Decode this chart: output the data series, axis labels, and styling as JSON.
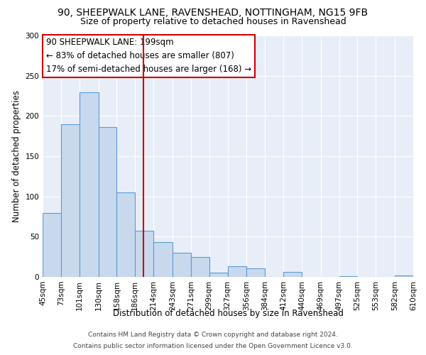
{
  "title_line1": "90, SHEEPWALK LANE, RAVENSHEAD, NOTTINGHAM, NG15 9FB",
  "title_line2": "Size of property relative to detached houses in Ravenshead",
  "xlabel": "Distribution of detached houses by size in Ravenshead",
  "ylabel": "Number of detached properties",
  "bin_labels": [
    "45sqm",
    "73sqm",
    "101sqm",
    "130sqm",
    "158sqm",
    "186sqm",
    "214sqm",
    "243sqm",
    "271sqm",
    "299sqm",
    "327sqm",
    "356sqm",
    "384sqm",
    "412sqm",
    "440sqm",
    "469sqm",
    "497sqm",
    "525sqm",
    "553sqm",
    "582sqm",
    "610sqm"
  ],
  "bar_values": [
    79,
    190,
    229,
    186,
    105,
    57,
    43,
    30,
    25,
    5,
    13,
    11,
    0,
    6,
    0,
    0,
    1,
    0,
    0,
    2
  ],
  "bar_edges": [
    45,
    73,
    101,
    130,
    158,
    186,
    214,
    243,
    271,
    299,
    327,
    356,
    384,
    412,
    440,
    469,
    497,
    525,
    553,
    582,
    610
  ],
  "bar_color": "#c9d9ed",
  "bar_edge_color": "#5b9bd5",
  "property_size": 199,
  "vline_color": "#cc0000",
  "annotation_text_line1": "90 SHEEPWALK LANE: 199sqm",
  "annotation_text_line2": "← 83% of detached houses are smaller (807)",
  "annotation_text_line3": "17% of semi-detached houses are larger (168) →",
  "annotation_box_edge_color": "#cc0000",
  "ylim": [
    0,
    300
  ],
  "yticks": [
    0,
    50,
    100,
    150,
    200,
    250,
    300
  ],
  "footer_line1": "Contains HM Land Registry data © Crown copyright and database right 2024.",
  "footer_line2": "Contains public sector information licensed under the Open Government Licence v3.0.",
  "background_color": "#e8eef7",
  "title_fontsize": 10,
  "subtitle_fontsize": 9,
  "axis_label_fontsize": 8.5,
  "tick_fontsize": 7.5,
  "annotation_fontsize": 8.5,
  "footer_fontsize": 6.5
}
